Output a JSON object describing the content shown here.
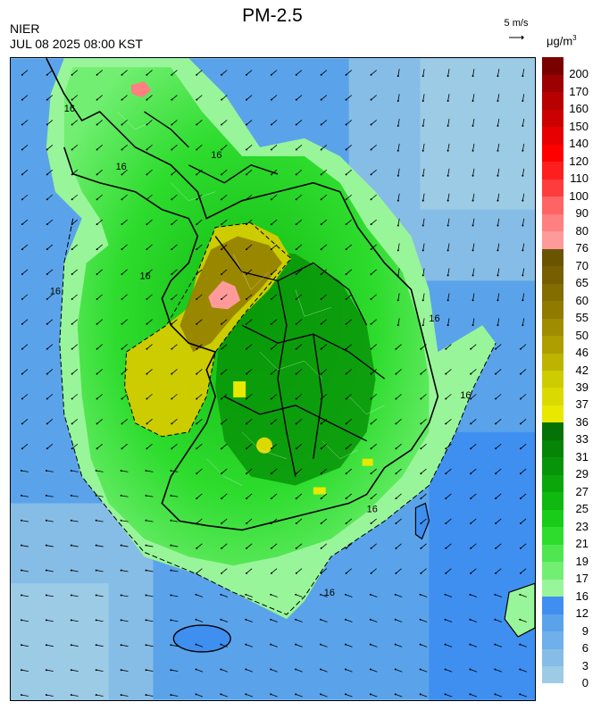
{
  "header": {
    "title": "PM-2.5",
    "agency": "NIER",
    "timestamp": "JUL 08 2025 08:00 KST",
    "wind_reference": "5 m/s",
    "unit_base": "μg/m",
    "unit_exponent": "3"
  },
  "legend": {
    "bins": [
      {
        "label": "0",
        "color": "#9ccbe6"
      },
      {
        "label": "3",
        "color": "#86bde6"
      },
      {
        "label": "6",
        "color": "#6fb0ea"
      },
      {
        "label": "9",
        "color": "#5aa3ea"
      },
      {
        "label": "12",
        "color": "#3f8ff0"
      },
      {
        "label": "16",
        "color": "#99f599"
      },
      {
        "label": "17",
        "color": "#72ef72"
      },
      {
        "label": "19",
        "color": "#4fe64f"
      },
      {
        "label": "21",
        "color": "#2edc2e"
      },
      {
        "label": "23",
        "color": "#18cc18"
      },
      {
        "label": "25",
        "color": "#0fb90f"
      },
      {
        "label": "27",
        "color": "#0aa60a"
      },
      {
        "label": "29",
        "color": "#089408"
      },
      {
        "label": "31",
        "color": "#068406"
      },
      {
        "label": "33",
        "color": "#057205"
      },
      {
        "label": "36",
        "color": "#e8e800"
      },
      {
        "label": "37",
        "color": "#dada00"
      },
      {
        "label": "39",
        "color": "#cccc00"
      },
      {
        "label": "42",
        "color": "#bdb400"
      },
      {
        "label": "46",
        "color": "#ae9e00"
      },
      {
        "label": "50",
        "color": "#9f8c00"
      },
      {
        "label": "55",
        "color": "#907a00"
      },
      {
        "label": "60",
        "color": "#836c00"
      },
      {
        "label": "65",
        "color": "#765f00"
      },
      {
        "label": "70",
        "color": "#6a5400"
      },
      {
        "label": "76",
        "color": "#ff9a9a"
      },
      {
        "label": "80",
        "color": "#ff8080"
      },
      {
        "label": "90",
        "color": "#ff6464"
      },
      {
        "label": "100",
        "color": "#ff3c3c"
      },
      {
        "label": "110",
        "color": "#ff1e1e"
      },
      {
        "label": "120",
        "color": "#ff0000"
      },
      {
        "label": "140",
        "color": "#e60000"
      },
      {
        "label": "150",
        "color": "#cc0000"
      },
      {
        "label": "160",
        "color": "#b80000"
      },
      {
        "label": "170",
        "color": "#9c0000"
      },
      {
        "label": "200",
        "color": "#7a0000"
      }
    ]
  },
  "map": {
    "sea_color": "#5aa3ea",
    "sea_far_color": "#9ccbe6",
    "contour_labels": [
      "16",
      "16",
      "16",
      "16",
      "16",
      "16",
      "16",
      "16",
      "16"
    ]
  }
}
